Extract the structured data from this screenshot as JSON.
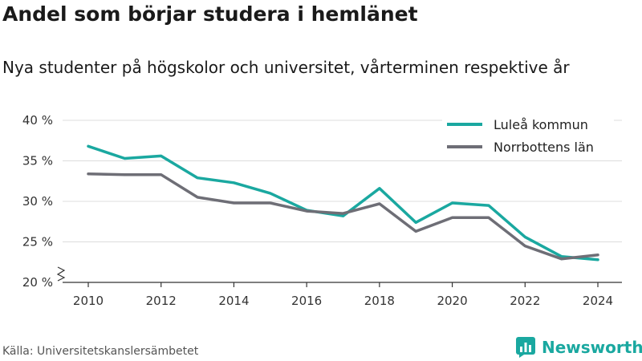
{
  "title": "Andel som börjar studera i hemlänet",
  "subtitle": "Nya studenter på högskolor och universitet, vårterminen respektive år",
  "source": "Källa: Universitetskanslersämbetet",
  "brand": {
    "name": "Newsworthy",
    "icon": "newsworthy-bar-chart-logo",
    "color": "#1aa8a0"
  },
  "chart_data": {
    "type": "line",
    "x": [
      2010,
      2011,
      2012,
      2013,
      2014,
      2015,
      2016,
      2017,
      2018,
      2019,
      2020,
      2021,
      2022,
      2023,
      2024
    ],
    "series": [
      {
        "name": "Luleå kommun",
        "color": "#1aa8a0",
        "values": [
          36.8,
          35.3,
          35.6,
          32.9,
          32.3,
          31.0,
          28.9,
          28.2,
          31.6,
          27.4,
          29.8,
          29.5,
          25.6,
          23.2,
          22.8
        ]
      },
      {
        "name": "Norrbottens län",
        "color": "#6e6e76",
        "values": [
          33.4,
          33.3,
          33.3,
          30.5,
          29.8,
          29.8,
          28.8,
          28.5,
          29.7,
          26.3,
          28.0,
          28.0,
          24.5,
          22.9,
          23.4
        ]
      }
    ],
    "xticks": [
      2010,
      2012,
      2014,
      2016,
      2018,
      2020,
      2022,
      2024
    ],
    "yticks": [
      20,
      25,
      30,
      35,
      40
    ],
    "ytick_labels": [
      "20 %",
      "25 %",
      "30 %",
      "35 %",
      "40 %"
    ],
    "ylim": [
      20,
      40
    ],
    "xlim": [
      2010,
      2024
    ],
    "axis_break": true,
    "grid": "horizontal",
    "legend": "top-right"
  }
}
